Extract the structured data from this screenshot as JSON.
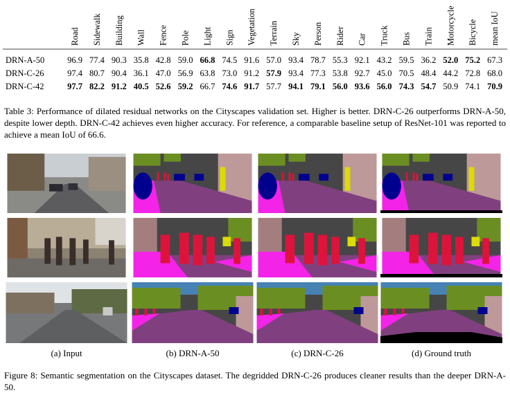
{
  "table": {
    "columns": [
      "Road",
      "Sidewalk",
      "Building",
      "Wall",
      "Fence",
      "Pole",
      "Light",
      "Sign",
      "Vegetation",
      "Terrain",
      "Sky",
      "Person",
      "Rider",
      "Car",
      "Truck",
      "Bus",
      "Train",
      "Motorcycle",
      "Bicycle",
      "mean IoU"
    ],
    "rows": [
      {
        "label": "DRN-A-50",
        "cells": [
          {
            "text": "96.9"
          },
          {
            "text": "77.4"
          },
          {
            "text": "90.3"
          },
          {
            "text": "35.8"
          },
          {
            "text": "42.8"
          },
          {
            "text": "59.0"
          },
          {
            "text": "66.8",
            "bold": true
          },
          {
            "text": "74.5"
          },
          {
            "text": "91.6"
          },
          {
            "text": "57.0"
          },
          {
            "text": "93.4"
          },
          {
            "text": "78.7"
          },
          {
            "text": "55.3"
          },
          {
            "text": "92.1"
          },
          {
            "text": "43.2"
          },
          {
            "text": "59.5"
          },
          {
            "text": "36.2"
          },
          {
            "text": "52.0",
            "bold": true
          },
          {
            "text": "75.2",
            "bold": true
          },
          {
            "text": "67.3"
          }
        ]
      },
      {
        "label": "DRN-C-26",
        "cells": [
          {
            "text": "97.4"
          },
          {
            "text": "80.7"
          },
          {
            "text": "90.4"
          },
          {
            "text": "36.1"
          },
          {
            "text": "47.0"
          },
          {
            "text": "56.9"
          },
          {
            "text": "63.8"
          },
          {
            "text": "73.0"
          },
          {
            "text": "91.2"
          },
          {
            "text": "57.9",
            "bold": true
          },
          {
            "text": "93.4"
          },
          {
            "text": "77.3"
          },
          {
            "text": "53.8"
          },
          {
            "text": "92.7"
          },
          {
            "text": "45.0"
          },
          {
            "text": "70.5"
          },
          {
            "text": "48.4"
          },
          {
            "text": "44.2"
          },
          {
            "text": "72.8"
          },
          {
            "text": "68.0"
          }
        ]
      },
      {
        "label": "DRN-C-42",
        "cells": [
          {
            "text": "97.7",
            "bold": true
          },
          {
            "text": "82.2",
            "bold": true
          },
          {
            "text": "91.2",
            "bold": true
          },
          {
            "text": "40.5",
            "bold": true
          },
          {
            "text": "52.6",
            "bold": true
          },
          {
            "text": "59.2",
            "bold": true
          },
          {
            "text": "66.7"
          },
          {
            "text": "74.6",
            "bold": true
          },
          {
            "text": "91.7",
            "bold": true
          },
          {
            "text": "57.7"
          },
          {
            "text": "94.1",
            "bold": true
          },
          {
            "text": "79.1",
            "bold": true
          },
          {
            "text": "56.0",
            "bold": true
          },
          {
            "text": "93.6",
            "bold": true
          },
          {
            "text": "56.0",
            "bold": true
          },
          {
            "text": "74.3",
            "bold": true
          },
          {
            "text": "54.7",
            "bold": true
          },
          {
            "text": "50.9"
          },
          {
            "text": "74.1"
          },
          {
            "text": "70.9",
            "bold": true
          }
        ]
      }
    ]
  },
  "table_caption": "Table 3: Performance of dilated residual networks on the Cityscapes validation set. Higher is better. DRN-C-26 outperforms DRN-A-50, despite lower depth. DRN-C-42 achieves even higher accuracy. For reference, a comparable baseline setup of ResNet-101 was reported to achieve a mean IoU of 66.6.",
  "figure": {
    "subcaptions": [
      "(a) Input",
      "(b) DRN-A-50",
      "(c) DRN-C-26",
      "(d) Ground truth"
    ],
    "caption": "Figure 8: Semantic segmentation on the Cityscapes dataset. The degridded DRN-C-26 produces cleaner results than the deeper DRN-A-50."
  }
}
